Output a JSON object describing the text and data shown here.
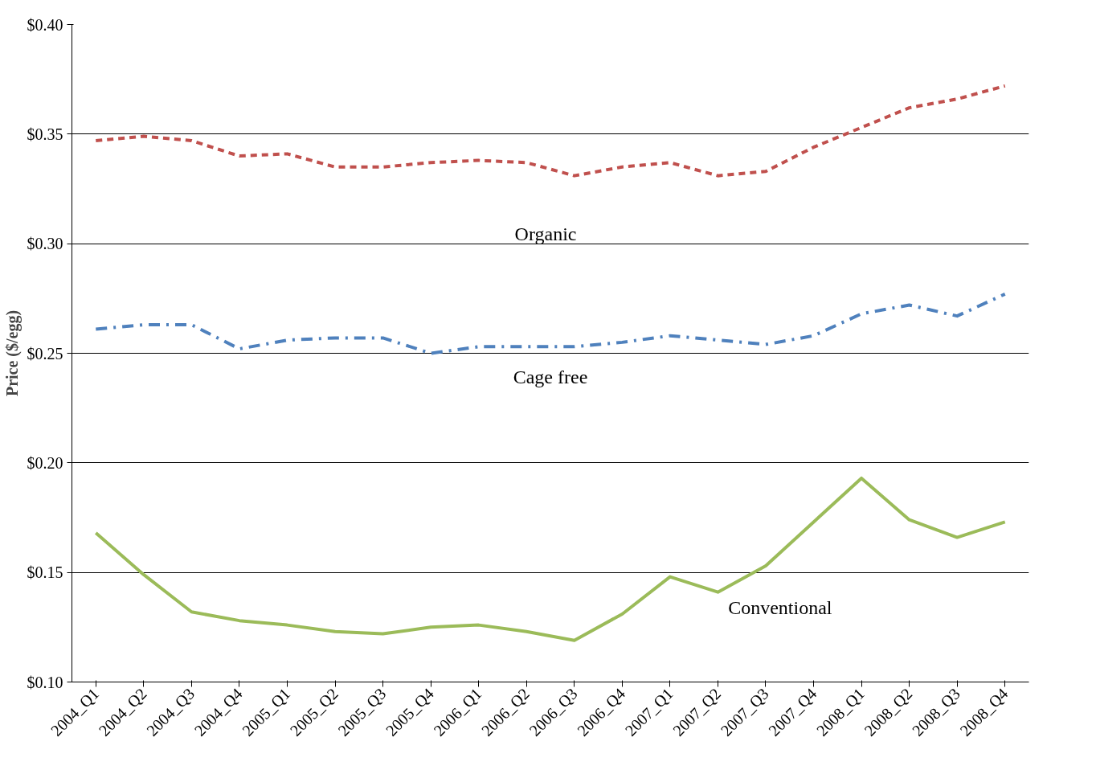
{
  "chart_data": {
    "type": "line",
    "ylabel": "Price ($/egg)",
    "categories": [
      "2004_Q1",
      "2004_Q2",
      "2004_Q3",
      "2004_Q4",
      "2005_Q1",
      "2005_Q2",
      "2005_Q3",
      "2005_Q4",
      "2006_Q1",
      "2006_Q2",
      "2006_Q3",
      "2006_Q4",
      "2007_Q1",
      "2007_Q2",
      "2007_Q3",
      "2007_Q4",
      "2008_Q1",
      "2008_Q2",
      "2008_Q3",
      "2008_Q4"
    ],
    "series": [
      {
        "name": "Organic",
        "color": "#c0504d",
        "line_style": "dashed",
        "values": [
          0.347,
          0.349,
          0.347,
          0.34,
          0.341,
          0.335,
          0.335,
          0.337,
          0.338,
          0.337,
          0.331,
          0.335,
          0.337,
          0.331,
          0.333,
          0.344,
          0.353,
          0.362,
          0.366,
          0.372
        ]
      },
      {
        "name": "Cage free",
        "color": "#4f81bd",
        "line_style": "dashdot",
        "values": [
          0.261,
          0.263,
          0.263,
          0.252,
          0.256,
          0.257,
          0.257,
          0.25,
          0.253,
          0.253,
          0.253,
          0.255,
          0.258,
          0.256,
          0.254,
          0.258,
          0.268,
          0.272,
          0.267,
          0.277
        ]
      },
      {
        "name": "Conventional",
        "color": "#9bbb59",
        "line_style": "solid",
        "values": [
          0.168,
          0.149,
          0.132,
          0.128,
          0.126,
          0.123,
          0.122,
          0.125,
          0.126,
          0.123,
          0.119,
          0.131,
          0.148,
          0.141,
          0.153,
          0.173,
          0.193,
          0.174,
          0.166,
          0.173
        ]
      }
    ],
    "ylim": [
      0.1,
      0.4
    ],
    "yticks": [
      {
        "value": 0.1,
        "label": "$0.10"
      },
      {
        "value": 0.15,
        "label": "$0.15"
      },
      {
        "value": 0.2,
        "label": "$0.20"
      },
      {
        "value": 0.25,
        "label": "$0.25"
      },
      {
        "value": 0.3,
        "label": "$0.30"
      },
      {
        "value": 0.35,
        "label": "$0.35"
      },
      {
        "value": 0.4,
        "label": "$0.40"
      }
    ],
    "grid": "y"
  }
}
